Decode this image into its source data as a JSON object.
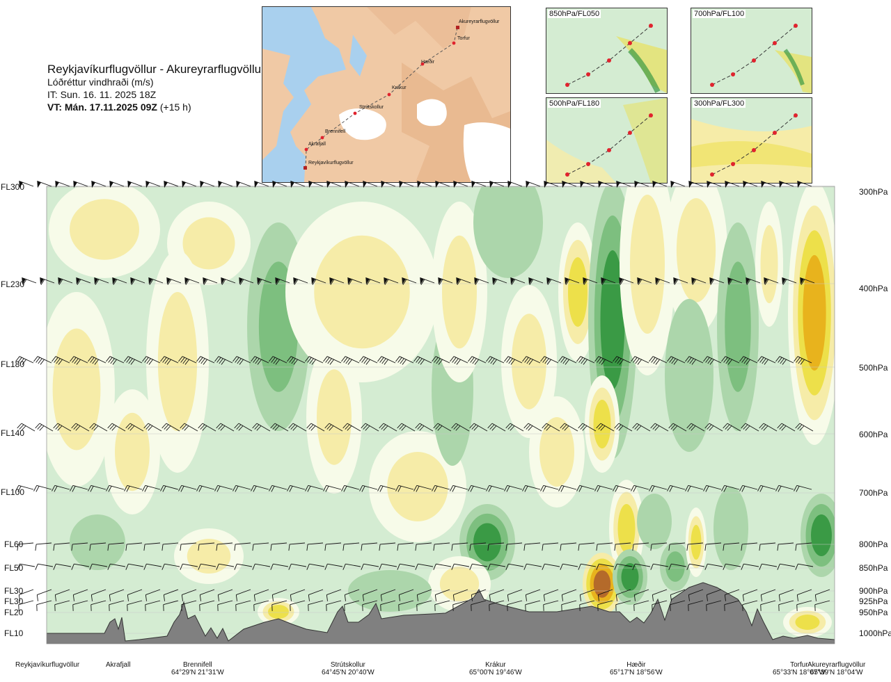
{
  "header": {
    "title": "Reykjavíkurflugvöllur - Akureyrarflugvöllur",
    "subtitle": "Lóðréttur vindhraði (m/s)",
    "issue_time": "IT: Sun. 16. 11. 2025 18Z",
    "valid_time": "VT: Mán. 17.11.2025 09Z",
    "lead_time": "(+15 h)"
  },
  "route_map": {
    "waypoints": [
      "Akureyrarflugvöllur",
      "Torfur",
      "Hæðir",
      "Krákur",
      "Strútskollur",
      "Brennifell",
      "Akrafjall",
      "Reykjavíkurflugvöllur"
    ],
    "colors": {
      "land": "#f0c9a5",
      "water": "#a9d0ee",
      "ice": "#ffffff",
      "route": "#555555",
      "point": "#e0232e"
    }
  },
  "level_maps": [
    {
      "label": "850hPa/FL050"
    },
    {
      "label": "700hPa/FL100"
    },
    {
      "label": "500hPa/FL180"
    },
    {
      "label": "300hPa/FL300"
    }
  ],
  "chart_data": {
    "type": "heatmap",
    "variable": "Lóðréttur vindhraði (m/s)",
    "y_levels": [
      {
        "fl": "FL300",
        "hpa": "300hPa"
      },
      {
        "fl": "FL230",
        "hpa": "400hPa"
      },
      {
        "fl": "FL180",
        "hpa": "500hPa"
      },
      {
        "fl": "FL140",
        "hpa": "600hPa"
      },
      {
        "fl": "FL100",
        "hpa": "700hPa"
      },
      {
        "fl": "FL60",
        "hpa": "800hPa"
      },
      {
        "fl": "FL50",
        "hpa": "850hPa"
      },
      {
        "fl": "FL30",
        "hpa": "900hPa"
      },
      {
        "fl": "FL30",
        "hpa": "925hPa"
      },
      {
        "fl": "FL20",
        "hpa": "950hPa"
      },
      {
        "fl": "FL10",
        "hpa": "1000hPa"
      }
    ],
    "x_sites": [
      {
        "name": "Reykjavíkurflugvöllur",
        "coord": ""
      },
      {
        "name": "Akrafjall",
        "coord": ""
      },
      {
        "name": "Brennifell",
        "coord": "64°29'N 21°31'W"
      },
      {
        "name": "Strútskollur",
        "coord": "64°45'N 20°40'W"
      },
      {
        "name": "Krákur",
        "coord": "65°00'N 19°46'W"
      },
      {
        "name": "Hæðir",
        "coord": "65°17'N 18°56'W"
      },
      {
        "name": "Torfur",
        "coord": "65°33'N 18°07'W"
      },
      {
        "name": "Akureyrarflugvöllur",
        "coord": "65°39'N 18°04'W"
      }
    ],
    "colors": {
      "strong_down": "#3a9a45",
      "moderate_down": "#7dbf7f",
      "weak_down": "#acd6ab",
      "neutral_down": "#d4ecd2",
      "near_zero": "#f7fbe9",
      "weak_up": "#f6eca8",
      "moderate_up": "#ede04a",
      "strong_up": "#e8b31d",
      "very_strong_up": "#b46a2a",
      "terrain": "#808080"
    },
    "grid": true
  }
}
